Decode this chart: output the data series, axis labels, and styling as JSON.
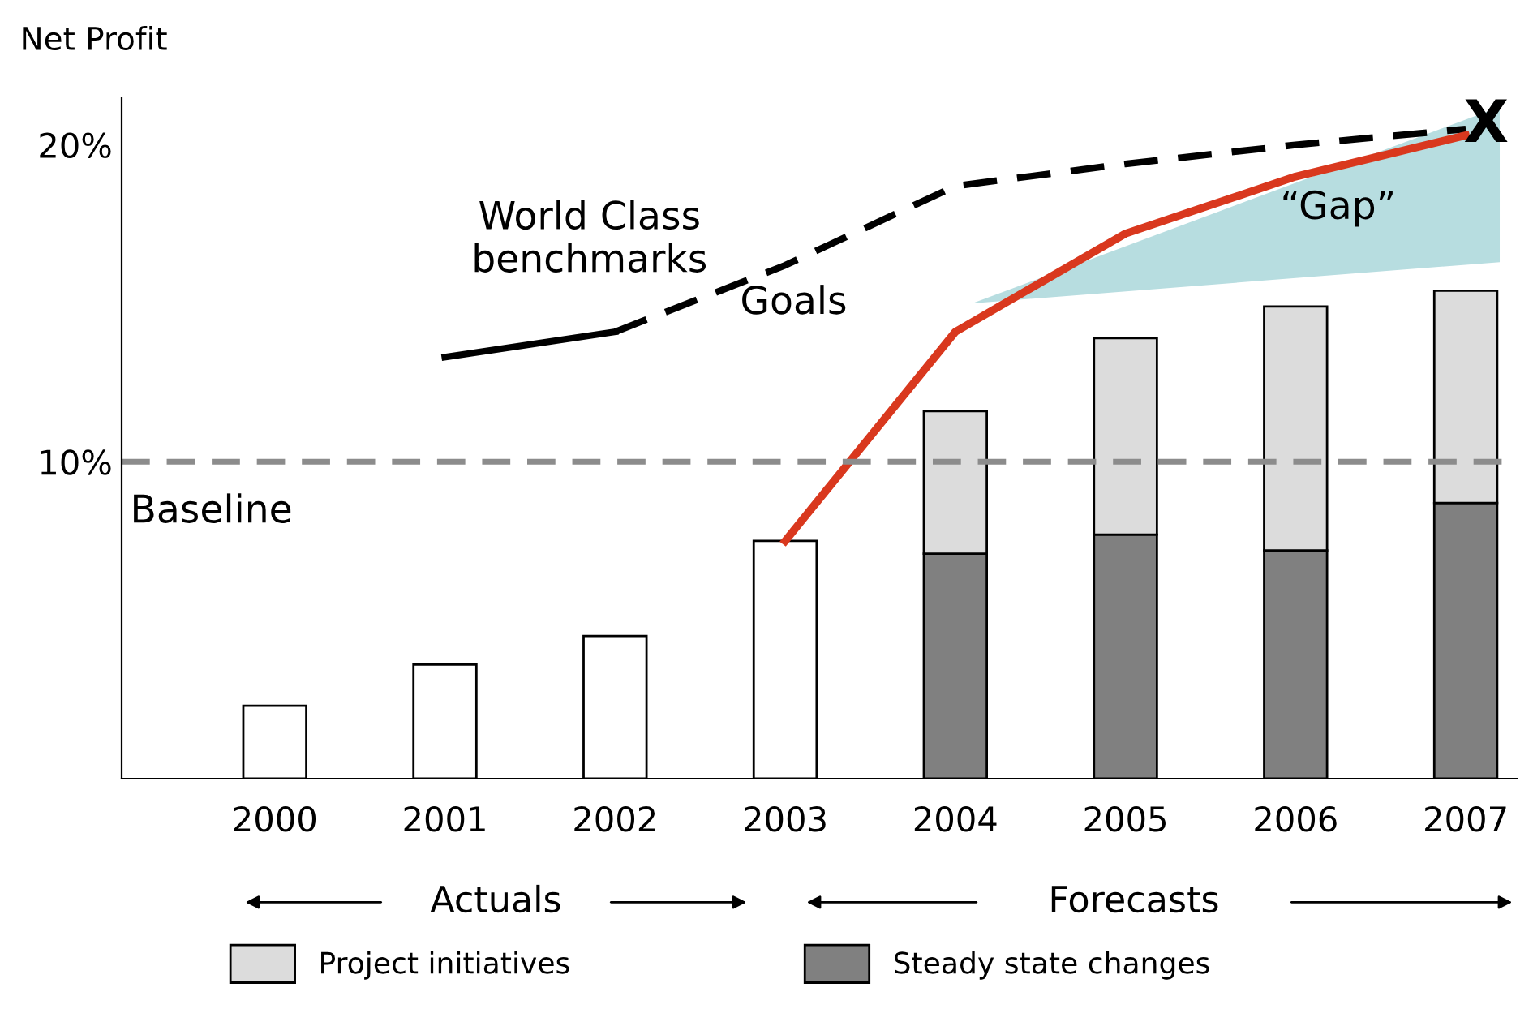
{
  "chart_data": {
    "type": "bar",
    "stacked": true,
    "ylabel": "Net Profit",
    "categories": [
      "2000",
      "2001",
      "2002",
      "2003",
      "2004",
      "2005",
      "2006",
      "2007"
    ],
    "series": [
      {
        "color": "#ffffff",
        "values": [
          2.3,
          3.6,
          4.5,
          7.5,
          null,
          null,
          null,
          null
        ]
      },
      {
        "name": "Steady state changes",
        "color": "#808080",
        "values": [
          null,
          null,
          null,
          null,
          7.1,
          7.7,
          7.2,
          8.7
        ]
      },
      {
        "name": "Project initiatives",
        "color": "#dcdcdc",
        "values": [
          null,
          null,
          null,
          null,
          4.5,
          6.2,
          7.7,
          6.7
        ]
      },
      {
        "type": "line",
        "color": "#000000",
        "line_style": "solid",
        "values": [
          null,
          13.3,
          14.1,
          null,
          null,
          null,
          null,
          null
        ]
      },
      {
        "type": "line",
        "color": "#000000",
        "line_style": "dashed",
        "values": [
          null,
          null,
          14.1,
          16.2,
          18.7,
          19.4,
          20.0,
          20.5
        ]
      },
      {
        "type": "line",
        "color": "#d9381e",
        "line_style": "solid",
        "values": [
          null,
          null,
          null,
          7.5,
          14.1,
          17.2,
          19.0,
          20.3
        ]
      }
    ],
    "ylim": [
      0,
      21.5
    ],
    "yticks": [
      {
        "value": 10,
        "label": "10%"
      },
      {
        "value": 20,
        "label": "20%"
      }
    ],
    "ref_lines": [
      {
        "axis": "y",
        "value": 10,
        "label": "Baseline",
        "color": "#8c8c8c",
        "line_style": "dashed"
      }
    ],
    "annotations": [
      "World Class\nbenchmarks",
      "Goals",
      "“Gap”",
      "X",
      "Actuals",
      "Forecasts"
    ],
    "legend": "bottom",
    "grid": false
  }
}
